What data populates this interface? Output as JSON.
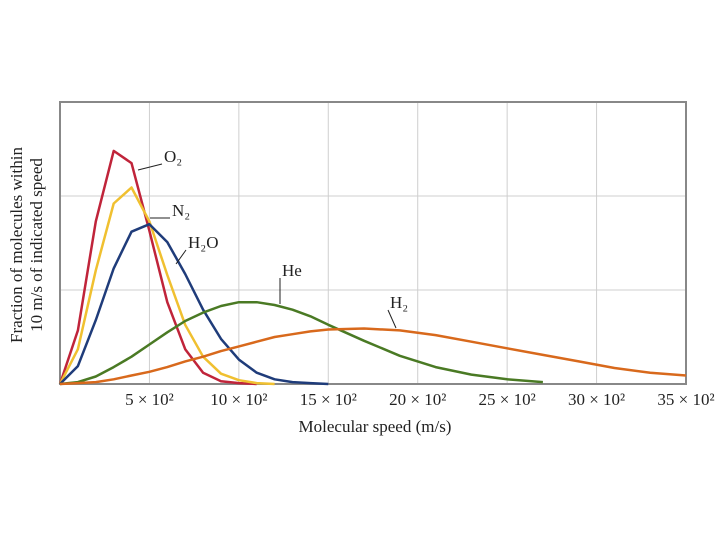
{
  "chart_data": {
    "type": "line",
    "xlabel": "Molecular speed (m/s)",
    "ylabel": [
      "Fraction of molecules within",
      "10 m/s of indicated speed"
    ],
    "x": [
      0,
      100,
      200,
      300,
      400,
      500,
      600,
      700,
      800,
      900,
      1000,
      1100,
      1200,
      1300,
      1400,
      1500,
      1700,
      1900,
      2100,
      2300,
      2500,
      2700,
      2900,
      3100,
      3300,
      3500
    ],
    "series": [
      {
        "name": "O₂",
        "color": "#c0243a",
        "values": [
          0,
          0.57,
          1.73,
          2.48,
          2.35,
          1.63,
          0.87,
          0.37,
          0.12,
          0.03,
          0.01,
          0,
          null,
          null,
          null,
          null,
          null,
          null,
          null,
          null,
          null,
          null,
          null,
          null,
          null,
          null
        ]
      },
      {
        "name": "N₂",
        "color": "#f0c030",
        "values": [
          0,
          0.37,
          1.21,
          1.92,
          2.09,
          1.73,
          1.16,
          0.63,
          0.29,
          0.11,
          0.04,
          0.01,
          0,
          null,
          null,
          null,
          null,
          null,
          null,
          null,
          null,
          null,
          null,
          null,
          null,
          null
        ]
      },
      {
        "name": "H₂O",
        "color": "#1f3c7a",
        "values": [
          0,
          0.19,
          0.68,
          1.23,
          1.62,
          1.7,
          1.51,
          1.17,
          0.79,
          0.48,
          0.26,
          0.12,
          0.05,
          0.02,
          0.01,
          0,
          null,
          null,
          null,
          null,
          null,
          null,
          null,
          null,
          null,
          null
        ]
      },
      {
        "name": "He",
        "color": "#4a7a24",
        "values": [
          0,
          0.02,
          0.08,
          0.18,
          0.29,
          0.42,
          0.55,
          0.67,
          0.76,
          0.83,
          0.87,
          0.87,
          0.84,
          0.79,
          0.72,
          0.63,
          0.46,
          0.3,
          0.18,
          0.1,
          0.05,
          0.02,
          null,
          null,
          null,
          null
        ]
      },
      {
        "name": "H₂",
        "color": "#d8691c",
        "values": [
          0,
          0.01,
          0.02,
          0.05,
          0.09,
          0.13,
          0.18,
          0.24,
          0.29,
          0.35,
          0.4,
          0.45,
          0.5,
          0.53,
          0.56,
          0.58,
          0.59,
          0.57,
          0.52,
          0.45,
          0.38,
          0.31,
          0.24,
          0.17,
          0.12,
          0.09
        ]
      }
    ],
    "xlim": [
      0,
      3500
    ],
    "xticks": [
      {
        "value": 500,
        "label": "5 × 10²"
      },
      {
        "value": 1000,
        "label": "10 × 10²"
      },
      {
        "value": 1500,
        "label": "15 × 10²"
      },
      {
        "value": 2000,
        "label": "20 × 10²"
      },
      {
        "value": 2500,
        "label": "25 × 10²"
      },
      {
        "value": 3000,
        "label": "30 × 10²"
      },
      {
        "value": 3500,
        "label": "35 × 10²"
      }
    ],
    "ylim": [
      0,
      3
    ],
    "yticks": [
      0,
      1,
      2,
      3
    ],
    "grid": true
  }
}
